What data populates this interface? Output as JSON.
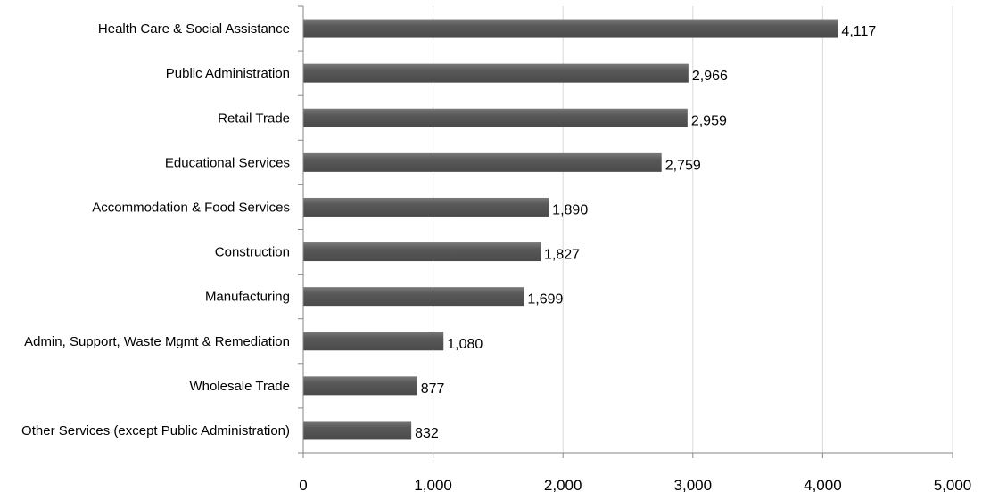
{
  "chart_data": {
    "type": "bar",
    "orientation": "horizontal",
    "categories": [
      "Health Care & Social Assistance",
      "Public Administration",
      "Retail Trade",
      "Educational Services",
      "Accommodation & Food Services",
      "Construction",
      "Manufacturing",
      "Admin, Support, Waste Mgmt & Remediation",
      "Wholesale Trade",
      "Other Services (except Public Administration)"
    ],
    "values": [
      4117,
      2966,
      2959,
      2759,
      1890,
      1827,
      1699,
      1080,
      877,
      832
    ],
    "data_labels": [
      "4,117",
      "2,966",
      "2,959",
      "2,759",
      "1,890",
      "1,827",
      "1,699",
      "1,080",
      "877",
      "832"
    ],
    "x_ticks": [
      0,
      1000,
      2000,
      3000,
      4000,
      5000
    ],
    "x_tick_labels": [
      "0",
      "1,000",
      "2,000",
      "3,000",
      "4,000",
      "5,000"
    ],
    "xlim": [
      0,
      5000
    ],
    "title": "",
    "xlabel": "",
    "ylabel": "",
    "grid": true,
    "legend": "none",
    "colors": {
      "bar": "#595959",
      "bar_highlight": "#7a7a7a",
      "grid": "#d9d9d9",
      "axis": "#868686"
    }
  }
}
